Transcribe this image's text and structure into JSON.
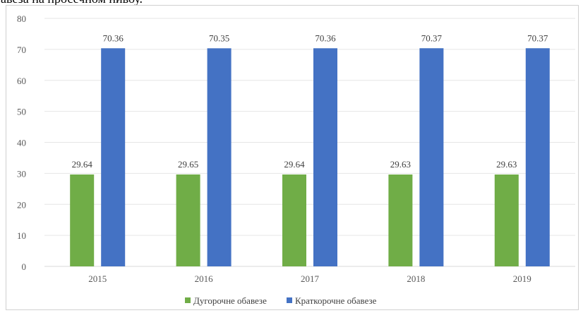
{
  "caption_fragment": "авеза на просечном нивоу.",
  "chart_data": {
    "type": "bar",
    "categories": [
      "2015",
      "2016",
      "2017",
      "2018",
      "2019"
    ],
    "series": [
      {
        "name": "Дугорочне обавезе",
        "color": "#70ad47",
        "values": [
          29.64,
          29.65,
          29.64,
          29.63,
          29.63
        ]
      },
      {
        "name": "Краткорочне обавезе",
        "color": "#4472c4",
        "values": [
          70.36,
          70.35,
          70.36,
          70.37,
          70.37
        ]
      }
    ],
    "data_labels": [
      [
        "29.64",
        "29.65",
        "29.64",
        "29.63",
        "29.63"
      ],
      [
        "70.36",
        "70.35",
        "70.36",
        "70.37",
        "70.37"
      ]
    ],
    "yticks": [
      "0",
      "10",
      "20",
      "30",
      "40",
      "50",
      "60",
      "70",
      "80"
    ],
    "ylim": [
      0,
      80
    ],
    "grid": true,
    "legend_position": "bottom"
  }
}
